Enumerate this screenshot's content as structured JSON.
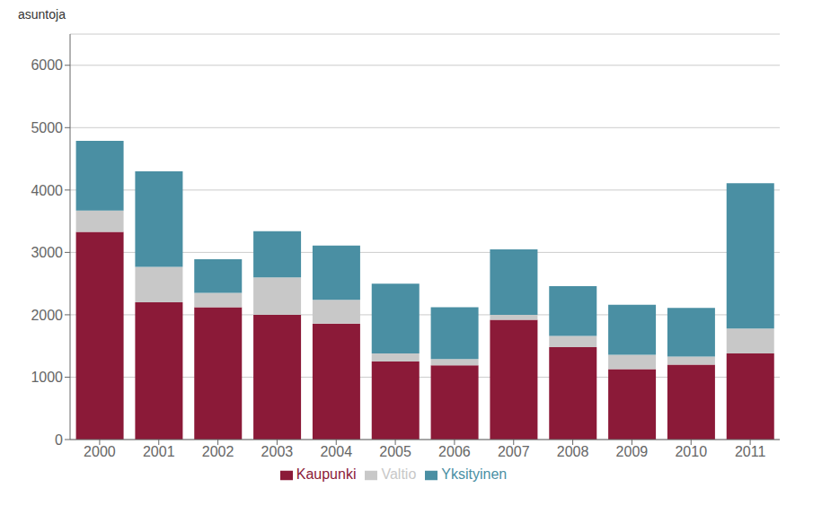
{
  "chart_data": {
    "type": "bar",
    "stacked": true,
    "ylabel": "asuntoja",
    "categories": [
      "2000",
      "2001",
      "2002",
      "2003",
      "2004",
      "2005",
      "2006",
      "2007",
      "2008",
      "2009",
      "2010",
      "2011"
    ],
    "series": [
      {
        "name": "Kaupunki",
        "color": "#8B1A38",
        "values": [
          3330,
          2200,
          2120,
          2000,
          1860,
          1250,
          1190,
          1920,
          1480,
          1130,
          1200,
          1380
        ]
      },
      {
        "name": "Valtio",
        "color": "#C8C8C8",
        "values": [
          340,
          570,
          230,
          600,
          380,
          130,
          100,
          80,
          180,
          230,
          130,
          400
        ]
      },
      {
        "name": "Yksityinen",
        "color": "#4A8FA3",
        "values": [
          1120,
          1530,
          540,
          740,
          870,
          1120,
          830,
          1050,
          800,
          800,
          780,
          2330
        ]
      }
    ],
    "ylim": [
      0,
      6500
    ],
    "yticks": [
      0,
      1000,
      2000,
      3000,
      4000,
      5000,
      6000
    ],
    "grid": true,
    "legend": "bottom"
  }
}
